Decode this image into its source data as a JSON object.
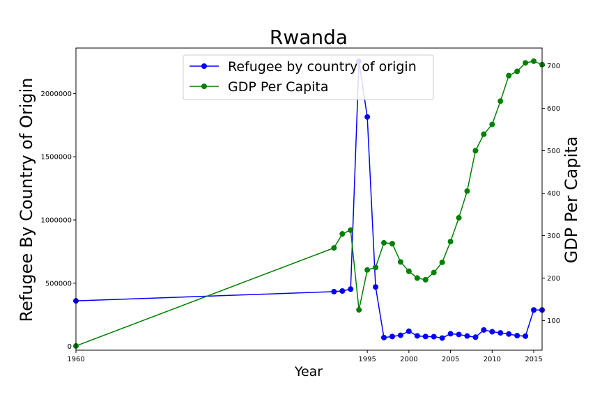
{
  "chart_data": {
    "type": "line",
    "title": "Rwanda",
    "xlabel": "Year",
    "ylabel_left": "Refugee By Country of Origin",
    "ylabel_right": "GDP Per Capita",
    "xlim": [
      1960,
      2016
    ],
    "ylim_left": [
      -30000,
      2360000
    ],
    "ylim_right": [
      30,
      742
    ],
    "x_ticks": [
      1960,
      1995,
      2000,
      2005,
      2010,
      2015
    ],
    "y_ticks_left": [
      0,
      500000,
      1000000,
      1500000,
      2000000
    ],
    "y_ticks_right": [
      100,
      200,
      300,
      400,
      500,
      600,
      700
    ],
    "x": [
      1960,
      1991,
      1992,
      1993,
      1994,
      1995,
      1996,
      1997,
      1998,
      1999,
      2000,
      2001,
      2002,
      2003,
      2004,
      2005,
      2006,
      2007,
      2008,
      2009,
      2010,
      2011,
      2012,
      2013,
      2014,
      2015,
      2016
    ],
    "legend_position": "top-center",
    "grid": false,
    "series": [
      {
        "name": "Refugee by country of origin",
        "axis": "left",
        "color": "#0000ff",
        "values": [
          360000,
          433000,
          438000,
          453000,
          2255000,
          1815000,
          470000,
          70000,
          78000,
          88000,
          120000,
          83000,
          78000,
          77000,
          66000,
          100000,
          94000,
          82000,
          73000,
          130000,
          116000,
          107000,
          98000,
          85000,
          81000,
          288000,
          288000
        ]
      },
      {
        "name": "GDP Per Capita",
        "axis": "right",
        "color": "#008000",
        "values": [
          40,
          271,
          304,
          313,
          125,
          219,
          225,
          283,
          281,
          238,
          216,
          200,
          196,
          213,
          237,
          286,
          342,
          405,
          500,
          539,
          562,
          617,
          677,
          687,
          707,
          711,
          703
        ]
      }
    ]
  }
}
